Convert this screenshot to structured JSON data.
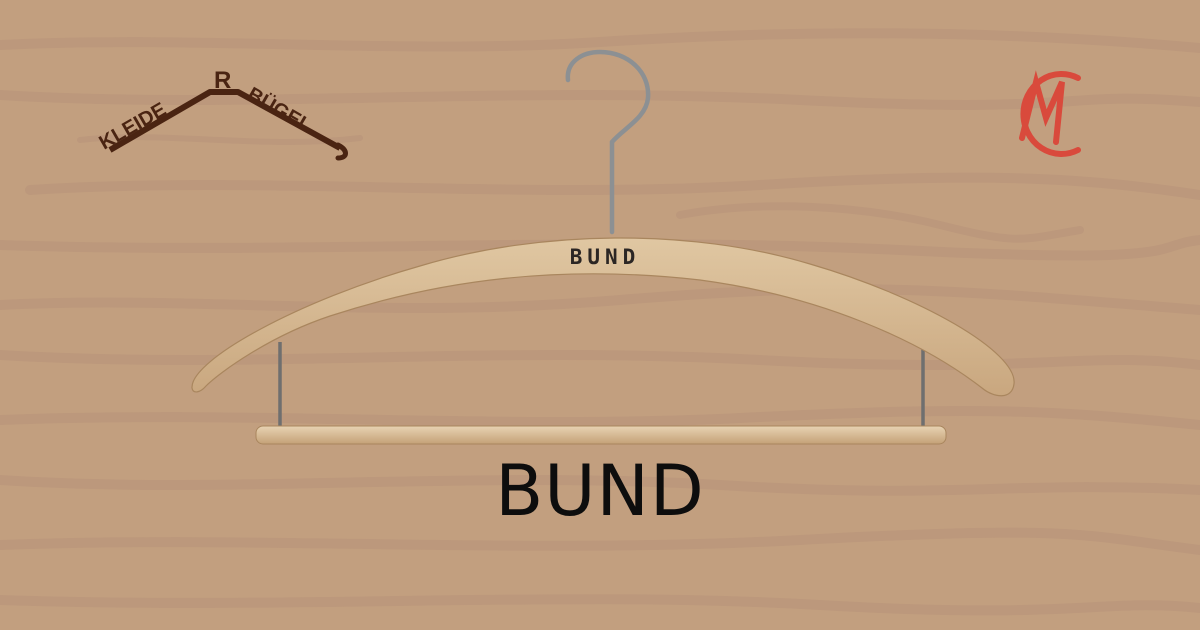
{
  "brand": {
    "logo_left_text": "KLEIDERBÜGEL",
    "logo_right_text": "CM"
  },
  "product": {
    "engraving": "BUND",
    "name": "BUND"
  },
  "colors": {
    "background": "#c29f7f",
    "wood": "#d6b892",
    "logo_brown": "#4a2412",
    "logo_red": "#d94a3c",
    "text": "#0d0d0d"
  }
}
